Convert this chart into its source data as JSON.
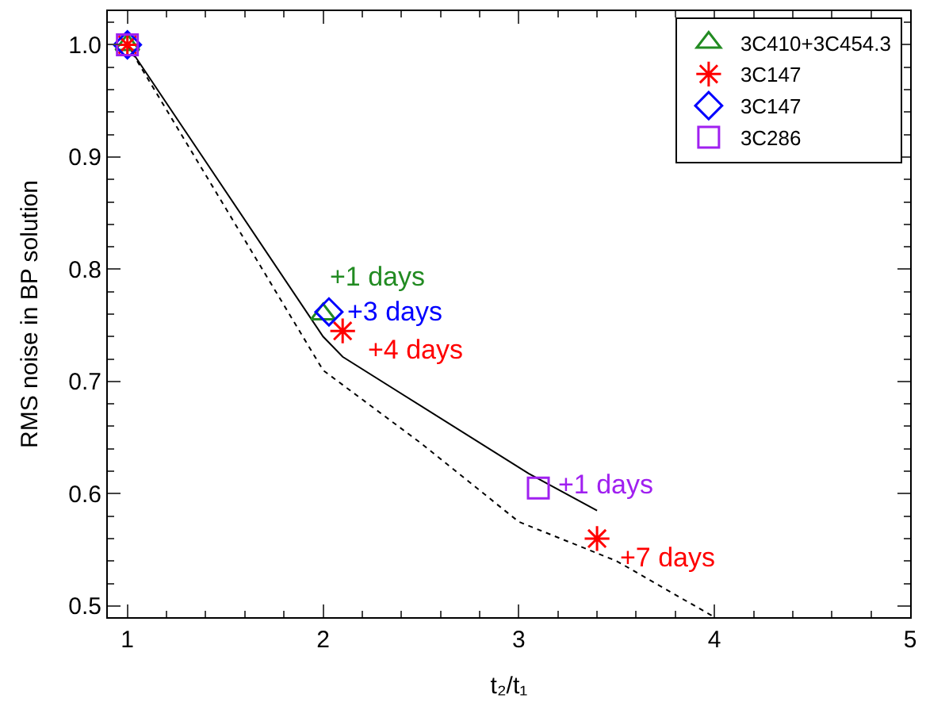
{
  "chart_data": {
    "type": "scatter",
    "xlabel": "t₂/t₁",
    "ylabel": "RMS noise in BP solution",
    "xlim": [
      0.9,
      5
    ],
    "xticks": [
      1,
      2,
      3,
      4,
      5
    ],
    "ylim": [
      0.49,
      1.03
    ],
    "yticks": [
      0.5,
      0.6,
      0.7,
      0.8,
      0.9,
      {
        "value": 1.0,
        "label": "1.0"
      }
    ],
    "legend": "top right",
    "series": [
      {
        "type": "line",
        "color": "#000000",
        "line_style": "solid",
        "marker": "none",
        "x": [
          1,
          2.0,
          2.1,
          3.05,
          3.4
        ],
        "values": [
          1.0,
          0.74,
          0.722,
          0.618,
          0.585
        ]
      },
      {
        "type": "line",
        "color": "#000000",
        "line_style": "dotted",
        "marker": "none",
        "x": [
          1,
          2.0,
          2.5,
          3.0,
          3.5,
          4.0
        ],
        "values": [
          1.0,
          0.71,
          0.645,
          0.575,
          0.54,
          0.49
        ]
      },
      {
        "name": "3C410+3C454.3",
        "color": "#228b22",
        "marker": "triangle",
        "x": [
          1,
          2.0
        ],
        "values": [
          1.0,
          0.76
        ]
      },
      {
        "name": "3C147",
        "color": "#ff0000",
        "marker": "cross",
        "x": [
          1,
          2.1,
          3.4
        ],
        "values": [
          1.0,
          0.745,
          0.56
        ]
      },
      {
        "name": "3C147",
        "color": "#0000ff",
        "marker": "diamond",
        "x": [
          1,
          2.03
        ],
        "values": [
          1.0,
          0.762
        ]
      },
      {
        "name": "3C286",
        "color": "#a020f0",
        "marker": "square",
        "x": [
          1,
          3.1
        ],
        "values": [
          1.0,
          0.605
        ]
      }
    ],
    "annotations": [
      {
        "text": "+1 days",
        "x": 2.0,
        "y": 0.76
      },
      {
        "text": "+3 days",
        "x": 2.03,
        "y": 0.762
      },
      {
        "text": "+4 days",
        "x": 2.1,
        "y": 0.745
      },
      {
        "text": "+1 days",
        "x": 3.1,
        "y": 0.605
      },
      {
        "text": "+7 days",
        "x": 3.4,
        "y": 0.56
      }
    ]
  }
}
